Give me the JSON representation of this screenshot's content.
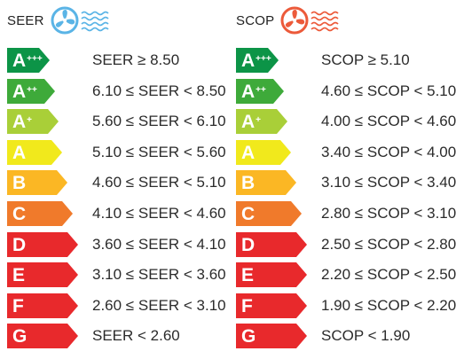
{
  "seer": {
    "title": "SEER",
    "icon": "fan-cool-icon",
    "icon_color": "#5ab4e6",
    "rows": [
      {
        "class": "A",
        "sup": "+++",
        "range": "SEER ≥ 8.50",
        "color": "#0c9447"
      },
      {
        "class": "A",
        "sup": "++",
        "range": "6.10 ≤ SEER < 8.50",
        "color": "#3eaa3a"
      },
      {
        "class": "A",
        "sup": "+",
        "range": "5.60 ≤ SEER < 6.10",
        "color": "#a9cf38"
      },
      {
        "class": "A",
        "sup": "",
        "range": "5.10 ≤ SEER < 5.60",
        "color": "#f1e91c"
      },
      {
        "class": "B",
        "sup": "",
        "range": "4.60 ≤ SEER < 5.10",
        "color": "#fbb724"
      },
      {
        "class": "C",
        "sup": "",
        "range": "4.10 ≤ SEER < 4.60",
        "color": "#f07a2b"
      },
      {
        "class": "D",
        "sup": "",
        "range": "3.60 ≤ SEER < 4.10",
        "color": "#e8292c"
      },
      {
        "class": "E",
        "sup": "",
        "range": "3.10 ≤ SEER < 3.60",
        "color": "#e8292c"
      },
      {
        "class": "F",
        "sup": "",
        "range": "2.60 ≤ SEER < 3.10",
        "color": "#e8292c"
      },
      {
        "class": "G",
        "sup": "",
        "range": "SEER < 2.60",
        "color": "#e8292c"
      }
    ]
  },
  "scop": {
    "title": "SCOP",
    "icon": "fan-heat-icon",
    "icon_color": "#ec5a3a",
    "rows": [
      {
        "class": "A",
        "sup": "+++",
        "range": "SCOP ≥ 5.10",
        "color": "#0c9447"
      },
      {
        "class": "A",
        "sup": "++",
        "range": "4.60 ≤ SCOP < 5.10",
        "color": "#3eaa3a"
      },
      {
        "class": "A",
        "sup": "+",
        "range": "4.00 ≤ SCOP < 4.60",
        "color": "#a9cf38"
      },
      {
        "class": "A",
        "sup": "",
        "range": "3.40 ≤ SCOP < 4.00",
        "color": "#f1e91c"
      },
      {
        "class": "B",
        "sup": "",
        "range": "3.10 ≤ SCOP < 3.40",
        "color": "#fbb724"
      },
      {
        "class": "C",
        "sup": "",
        "range": "2.80 ≤ SCOP < 3.10",
        "color": "#f07a2b"
      },
      {
        "class": "D",
        "sup": "",
        "range": "2.50 ≤ SCOP < 2.80",
        "color": "#e8292c"
      },
      {
        "class": "E",
        "sup": "",
        "range": "2.20 ≤ SCOP < 2.50",
        "color": "#e8292c"
      },
      {
        "class": "F",
        "sup": "",
        "range": "1.90 ≤ SCOP < 2.20",
        "color": "#e8292c"
      },
      {
        "class": "G",
        "sup": "",
        "range": "SCOP < 1.90",
        "color": "#e8292c"
      }
    ]
  }
}
